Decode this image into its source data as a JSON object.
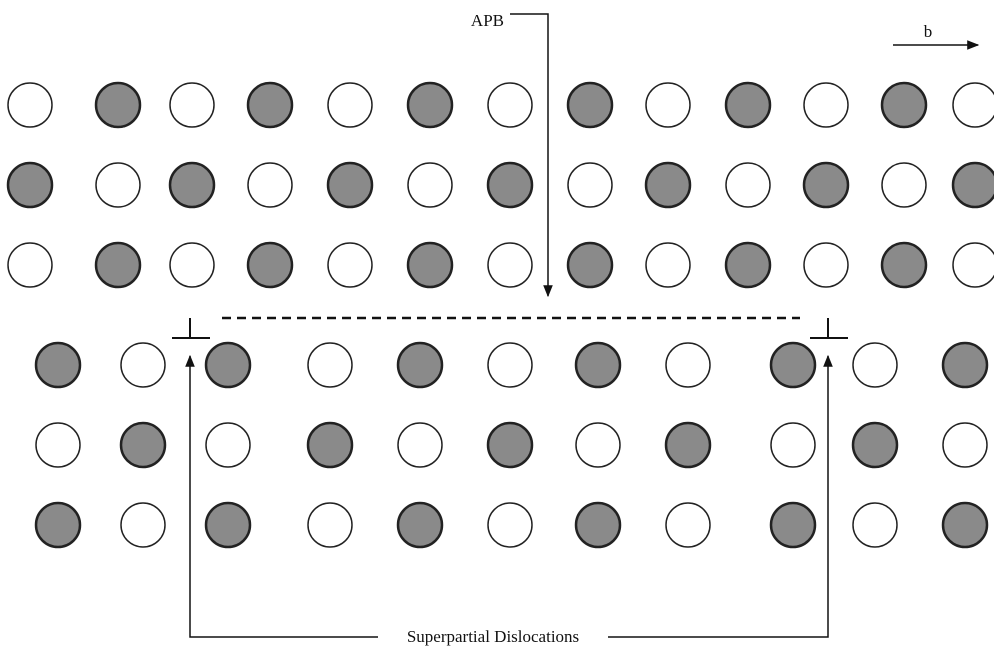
{
  "labels": {
    "apb": "APB",
    "burgers": "b",
    "dislocations": "Superpartial Dislocations"
  }
}
